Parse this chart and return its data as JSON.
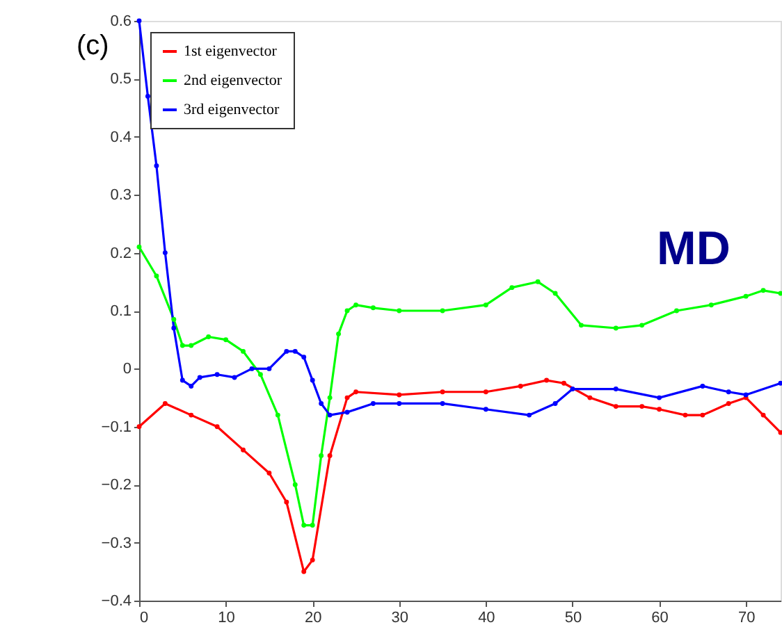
{
  "chart_data": {
    "type": "line",
    "annotations": [
      "(c)",
      "MD"
    ],
    "xlim": [
      0,
      74
    ],
    "xticks": [
      0,
      10,
      20,
      30,
      40,
      50,
      60,
      70
    ],
    "ylim": [
      -0.4,
      0.6
    ],
    "yticks": [
      -0.4,
      -0.3,
      -0.2,
      -0.1,
      {
        "value": 0,
        "label": "0"
      },
      0.1,
      0.2,
      0.3,
      0.4,
      0.5,
      0.6
    ],
    "grid": false,
    "legend": "top left",
    "marker": "circle",
    "line_style": "solid",
    "series": [
      {
        "name": "1st eigenvector",
        "color": "#ff0000",
        "x": [
          0,
          3,
          6,
          9,
          12,
          15,
          17,
          19,
          20,
          22,
          24,
          25,
          30,
          35,
          40,
          44,
          47,
          49,
          52,
          55,
          58,
          60,
          63,
          65,
          68,
          70,
          72,
          74
        ],
        "values": [
          -0.1,
          -0.06,
          -0.08,
          -0.1,
          -0.14,
          -0.18,
          -0.23,
          -0.35,
          -0.33,
          -0.15,
          -0.05,
          -0.04,
          -0.045,
          -0.04,
          -0.04,
          -0.03,
          -0.02,
          -0.025,
          -0.05,
          -0.065,
          -0.065,
          -0.07,
          -0.08,
          -0.08,
          -0.06,
          -0.05,
          -0.08,
          -0.11
        ]
      },
      {
        "name": "2nd eigenvector",
        "color": "#00ff00",
        "x": [
          0,
          2,
          4,
          5,
          6,
          8,
          10,
          12,
          14,
          16,
          18,
          19,
          20,
          21,
          22,
          23,
          24,
          25,
          27,
          30,
          35,
          40,
          43,
          46,
          48,
          51,
          55,
          58,
          62,
          66,
          70,
          72,
          74
        ],
        "values": [
          0.21,
          0.16,
          0.085,
          0.04,
          0.04,
          0.055,
          0.05,
          0.03,
          -0.01,
          -0.08,
          -0.2,
          -0.27,
          -0.27,
          -0.15,
          -0.05,
          0.06,
          0.1,
          0.11,
          0.105,
          0.1,
          0.1,
          0.11,
          0.14,
          0.15,
          0.13,
          0.075,
          0.07,
          0.075,
          0.1,
          0.11,
          0.125,
          0.135,
          0.13
        ]
      },
      {
        "name": "3rd eigenvector",
        "color": "#0000ff",
        "x": [
          0,
          1,
          2,
          3,
          4,
          5,
          6,
          7,
          9,
          11,
          13,
          15,
          17,
          18,
          19,
          20,
          21,
          22,
          24,
          27,
          30,
          35,
          40,
          45,
          48,
          50,
          55,
          60,
          65,
          68,
          70,
          74
        ],
        "values": [
          0.6,
          0.47,
          0.35,
          0.2,
          0.07,
          -0.02,
          -0.03,
          -0.015,
          -0.01,
          -0.015,
          0,
          0,
          0.03,
          0.03,
          0.02,
          -0.02,
          -0.06,
          -0.08,
          -0.075,
          -0.06,
          -0.06,
          -0.06,
          -0.07,
          -0.08,
          -0.06,
          -0.035,
          -0.035,
          -0.05,
          -0.03,
          -0.04,
          -0.045,
          -0.025
        ]
      }
    ]
  }
}
